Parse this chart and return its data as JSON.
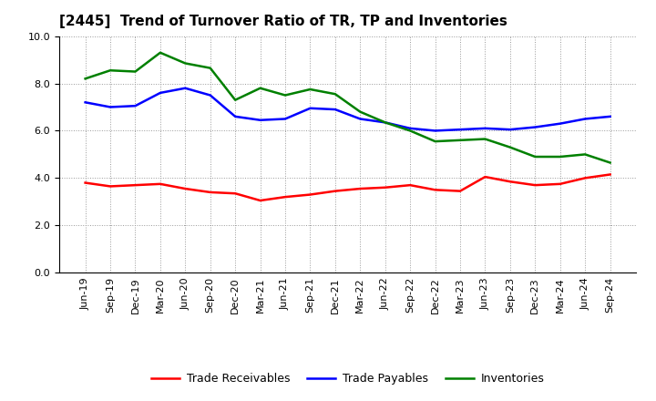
{
  "title": "[2445]  Trend of Turnover Ratio of TR, TP and Inventories",
  "xlabel": "",
  "ylabel": "",
  "ylim": [
    0.0,
    10.0
  ],
  "yticks": [
    0.0,
    2.0,
    4.0,
    6.0,
    8.0,
    10.0
  ],
  "x_labels": [
    "Jun-19",
    "Sep-19",
    "Dec-19",
    "Mar-20",
    "Jun-20",
    "Sep-20",
    "Dec-20",
    "Mar-21",
    "Jun-21",
    "Sep-21",
    "Dec-21",
    "Mar-22",
    "Jun-22",
    "Sep-22",
    "Dec-22",
    "Mar-23",
    "Jun-23",
    "Sep-23",
    "Dec-23",
    "Mar-24",
    "Jun-24",
    "Sep-24"
  ],
  "trade_receivables": [
    3.8,
    3.65,
    3.7,
    3.75,
    3.55,
    3.4,
    3.35,
    3.05,
    3.2,
    3.3,
    3.45,
    3.55,
    3.6,
    3.7,
    3.5,
    3.45,
    4.05,
    3.85,
    3.7,
    3.75,
    4.0,
    4.15
  ],
  "trade_payables": [
    7.2,
    7.0,
    7.05,
    7.6,
    7.8,
    7.5,
    6.6,
    6.45,
    6.5,
    6.95,
    6.9,
    6.5,
    6.35,
    6.1,
    6.0,
    6.05,
    6.1,
    6.05,
    6.15,
    6.3,
    6.5,
    6.6
  ],
  "inventories": [
    8.2,
    8.55,
    8.5,
    9.3,
    8.85,
    8.65,
    7.3,
    7.8,
    7.5,
    7.75,
    7.55,
    6.8,
    6.35,
    6.0,
    5.55,
    5.6,
    5.65,
    5.3,
    4.9,
    4.9,
    5.0,
    4.65
  ],
  "tr_color": "#ff0000",
  "tp_color": "#0000ff",
  "inv_color": "#008000",
  "line_width": 1.8,
  "background_color": "#ffffff",
  "grid_color": "#999999",
  "legend_labels": [
    "Trade Receivables",
    "Trade Payables",
    "Inventories"
  ],
  "title_fontsize": 11,
  "tick_fontsize": 8,
  "legend_fontsize": 9
}
